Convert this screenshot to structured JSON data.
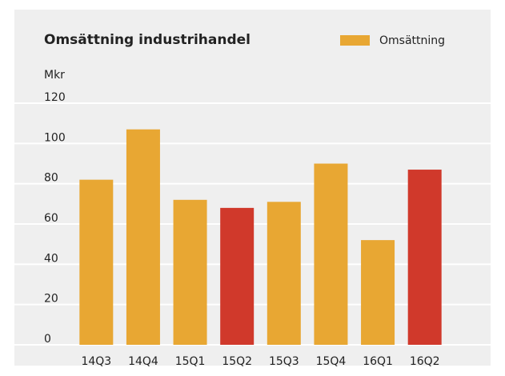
{
  "chart_data": {
    "type": "bar",
    "title": "Omsättning industrihandel",
    "y_label": "Mkr",
    "categories": [
      "14Q3",
      "14Q4",
      "15Q1",
      "15Q2",
      "15Q3",
      "15Q4",
      "16Q1",
      "16Q2"
    ],
    "series": [
      {
        "name": "Omsättning",
        "color": "#e8a733",
        "colors": [
          "#e8a733",
          "#e8a733",
          "#e8a733",
          "#d0392b",
          "#e8a733",
          "#e8a733",
          "#e8a733",
          "#d0392b"
        ],
        "values": [
          82,
          107,
          72,
          68,
          71,
          90,
          52,
          87
        ]
      }
    ],
    "ylim": [
      0,
      120
    ],
    "yticks": [
      0,
      20,
      40,
      60,
      80,
      100,
      120
    ],
    "grid": true,
    "legend": "top-right"
  }
}
